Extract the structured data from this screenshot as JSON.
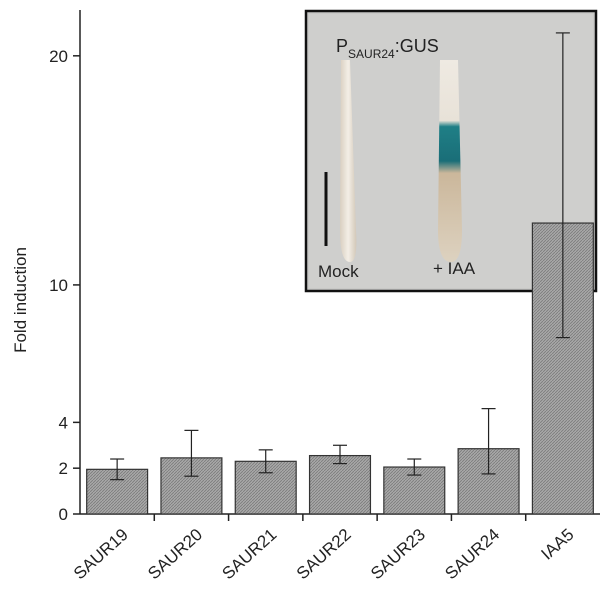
{
  "chart_data": {
    "type": "bar",
    "y_label": "Fold induction",
    "categories": [
      "SAUR19",
      "SAUR20",
      "SAUR21",
      "SAUR22",
      "SAUR23",
      "SAUR24",
      "IAA5"
    ],
    "values": [
      1.95,
      2.45,
      2.3,
      2.55,
      2.05,
      2.85,
      12.7
    ],
    "error_low": [
      0.45,
      0.8,
      0.5,
      0.35,
      0.35,
      1.1,
      5.0
    ],
    "error_high": [
      0.45,
      1.2,
      0.5,
      0.45,
      0.35,
      1.75,
      8.3
    ],
    "color": "#9a9a9a",
    "ylim": [
      0,
      22
    ],
    "yticks": [
      0,
      2,
      4,
      10,
      20
    ],
    "inset": {
      "title": "P",
      "title_subscript": "SAUR24",
      "title_suffix": ":GUS",
      "labels": [
        "Mock",
        "+ IAA"
      ]
    }
  }
}
